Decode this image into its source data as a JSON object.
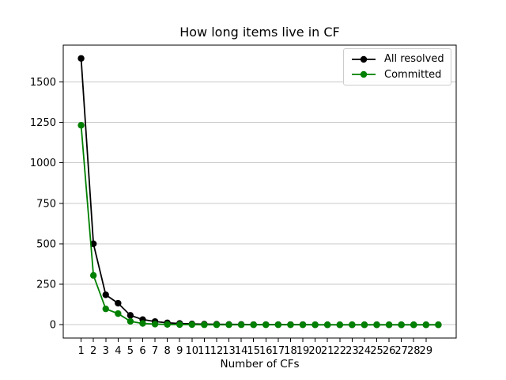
{
  "chart_data": {
    "type": "line",
    "title": "How long items live in CF",
    "xlabel": "Number of CFs",
    "ylabel": "",
    "grid": "y",
    "grid_color": "#c8c8c8",
    "spine_color": "#000000",
    "background_color": "#ffffff",
    "legend_position": "upper right",
    "xlim": [
      -0.45,
      31.45
    ],
    "ylim": [
      -82,
      1727
    ],
    "xticks": [
      1,
      2,
      3,
      4,
      5,
      6,
      7,
      8,
      9,
      10,
      11,
      12,
      13,
      14,
      15,
      16,
      17,
      18,
      19,
      20,
      21,
      22,
      23,
      24,
      25,
      26,
      27,
      28,
      29
    ],
    "yticks": [
      0,
      250,
      500,
      750,
      1000,
      1250,
      1500
    ],
    "x": [
      1,
      2,
      3,
      4,
      5,
      6,
      7,
      8,
      9,
      10,
      11,
      12,
      13,
      14,
      15,
      16,
      17,
      18,
      19,
      20,
      21,
      22,
      23,
      24,
      25,
      26,
      27,
      28,
      29,
      30
    ],
    "series": [
      {
        "name": "All resolved",
        "color": "#000000",
        "values": [
          1645,
          500,
          185,
          133,
          58,
          32,
          20,
          12,
          8,
          5,
          4,
          3,
          2,
          2,
          1,
          1,
          1,
          1,
          1,
          0,
          0,
          0,
          0,
          0,
          0,
          0,
          0,
          0,
          0,
          0
        ]
      },
      {
        "name": "Committed",
        "color": "#008000",
        "values": [
          1232,
          305,
          98,
          69,
          21,
          8,
          4,
          2,
          1,
          1,
          0,
          0,
          0,
          0,
          0,
          0,
          0,
          0,
          0,
          0,
          0,
          0,
          0,
          0,
          0,
          0,
          0,
          0,
          0,
          0
        ]
      }
    ]
  }
}
